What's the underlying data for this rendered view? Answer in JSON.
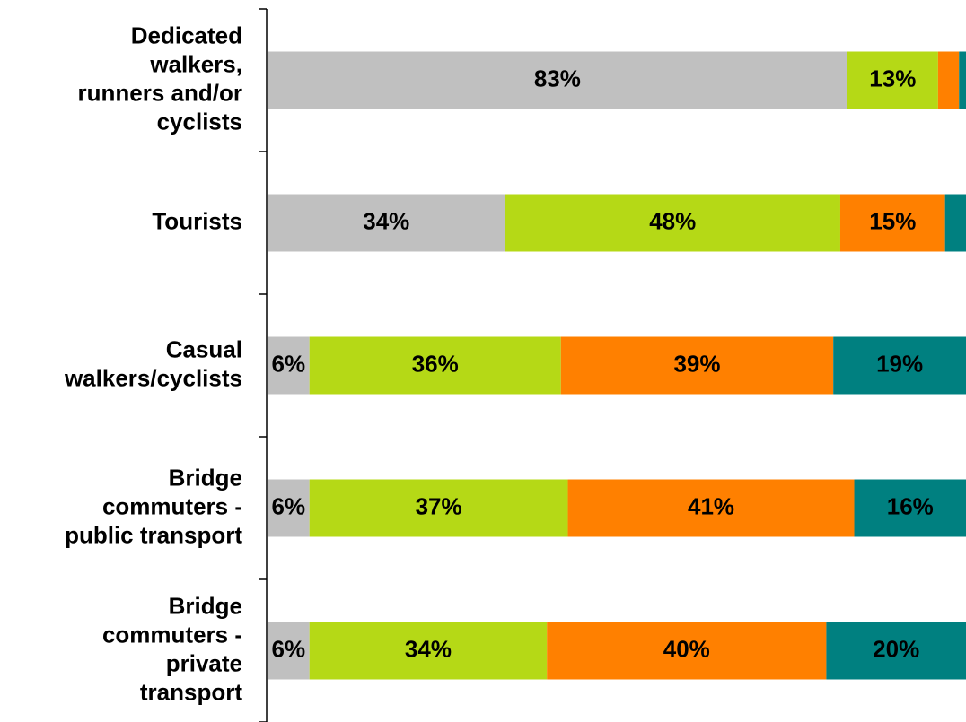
{
  "chart_data": {
    "type": "stacked-bar-horizontal",
    "categories": [
      "Dedicated\nwalkers,\nrunners and/or\ncyclists",
      "Tourists",
      "Casual\nwalkers/cyclists",
      "Bridge\ncommuters -\npublic transport",
      "Bridge\ncommuters -\nprivate\ntransport"
    ],
    "series": [
      {
        "color": "#c0c0c0",
        "values": [
          83,
          34,
          6,
          6,
          6
        ],
        "value_labels": [
          "83%",
          "34%",
          "6%",
          "6%",
          "6%"
        ]
      },
      {
        "color": "#b5d916",
        "values": [
          13,
          48,
          36,
          37,
          34
        ],
        "value_labels": [
          "13%",
          "48%",
          "36%",
          "37%",
          "34%"
        ]
      },
      {
        "color": "#ff8000",
        "values": [
          3,
          15,
          39,
          41,
          40
        ],
        "value_labels": [
          null,
          "15%",
          "39%",
          "41%",
          "40%"
        ]
      },
      {
        "color": "#008080",
        "values": [
          1,
          3,
          19,
          16,
          20
        ],
        "value_labels": [
          null,
          null,
          "19%",
          "16%",
          "20%"
        ]
      }
    ],
    "xlim": [
      0,
      100
    ]
  }
}
